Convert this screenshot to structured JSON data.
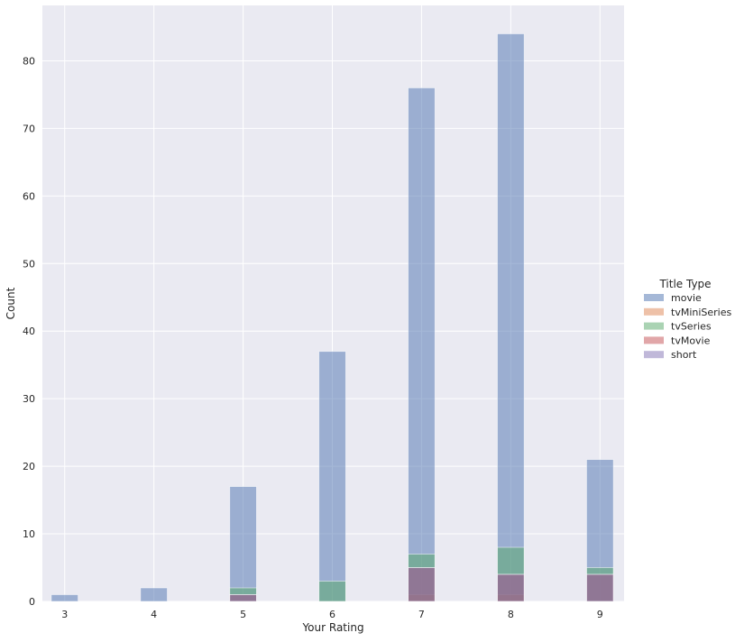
{
  "chart_data": {
    "type": "bar",
    "title": "",
    "xlabel": "Your Rating",
    "ylabel": "Count",
    "xlim": [
      2.75,
      9.27
    ],
    "ylim": [
      0,
      88.2
    ],
    "x_ticks": [
      3,
      4,
      5,
      6,
      7,
      8,
      9
    ],
    "y_ticks": [
      0,
      10,
      20,
      30,
      40,
      50,
      60,
      70,
      80
    ],
    "bin_width": 0.3,
    "grid": true,
    "legend": {
      "title": "Title Type",
      "placement": "right"
    },
    "series": [
      {
        "name": "movie",
        "color": "#4c72b0",
        "values": [
          [
            3,
            1
          ],
          [
            4,
            2
          ],
          [
            5,
            17
          ],
          [
            6,
            37
          ],
          [
            7,
            76
          ],
          [
            8,
            84
          ],
          [
            9,
            21
          ]
        ]
      },
      {
        "name": "tvMiniSeries",
        "color": "#dd8452",
        "values": [
          [
            7,
            1
          ],
          [
            8,
            1
          ]
        ]
      },
      {
        "name": "tvSeries",
        "color": "#55a868",
        "values": [
          [
            5,
            2
          ],
          [
            6,
            3
          ],
          [
            7,
            7
          ],
          [
            8,
            8
          ],
          [
            9,
            5
          ]
        ]
      },
      {
        "name": "tvMovie",
        "color": "#c44e52",
        "values": [
          [
            5,
            1
          ],
          [
            7,
            5
          ],
          [
            8,
            4
          ],
          [
            9,
            4
          ]
        ]
      },
      {
        "name": "short",
        "color": "#8172b3",
        "values": [
          [
            5,
            1
          ],
          [
            7,
            5
          ],
          [
            8,
            4
          ],
          [
            9,
            4
          ]
        ]
      }
    ]
  }
}
